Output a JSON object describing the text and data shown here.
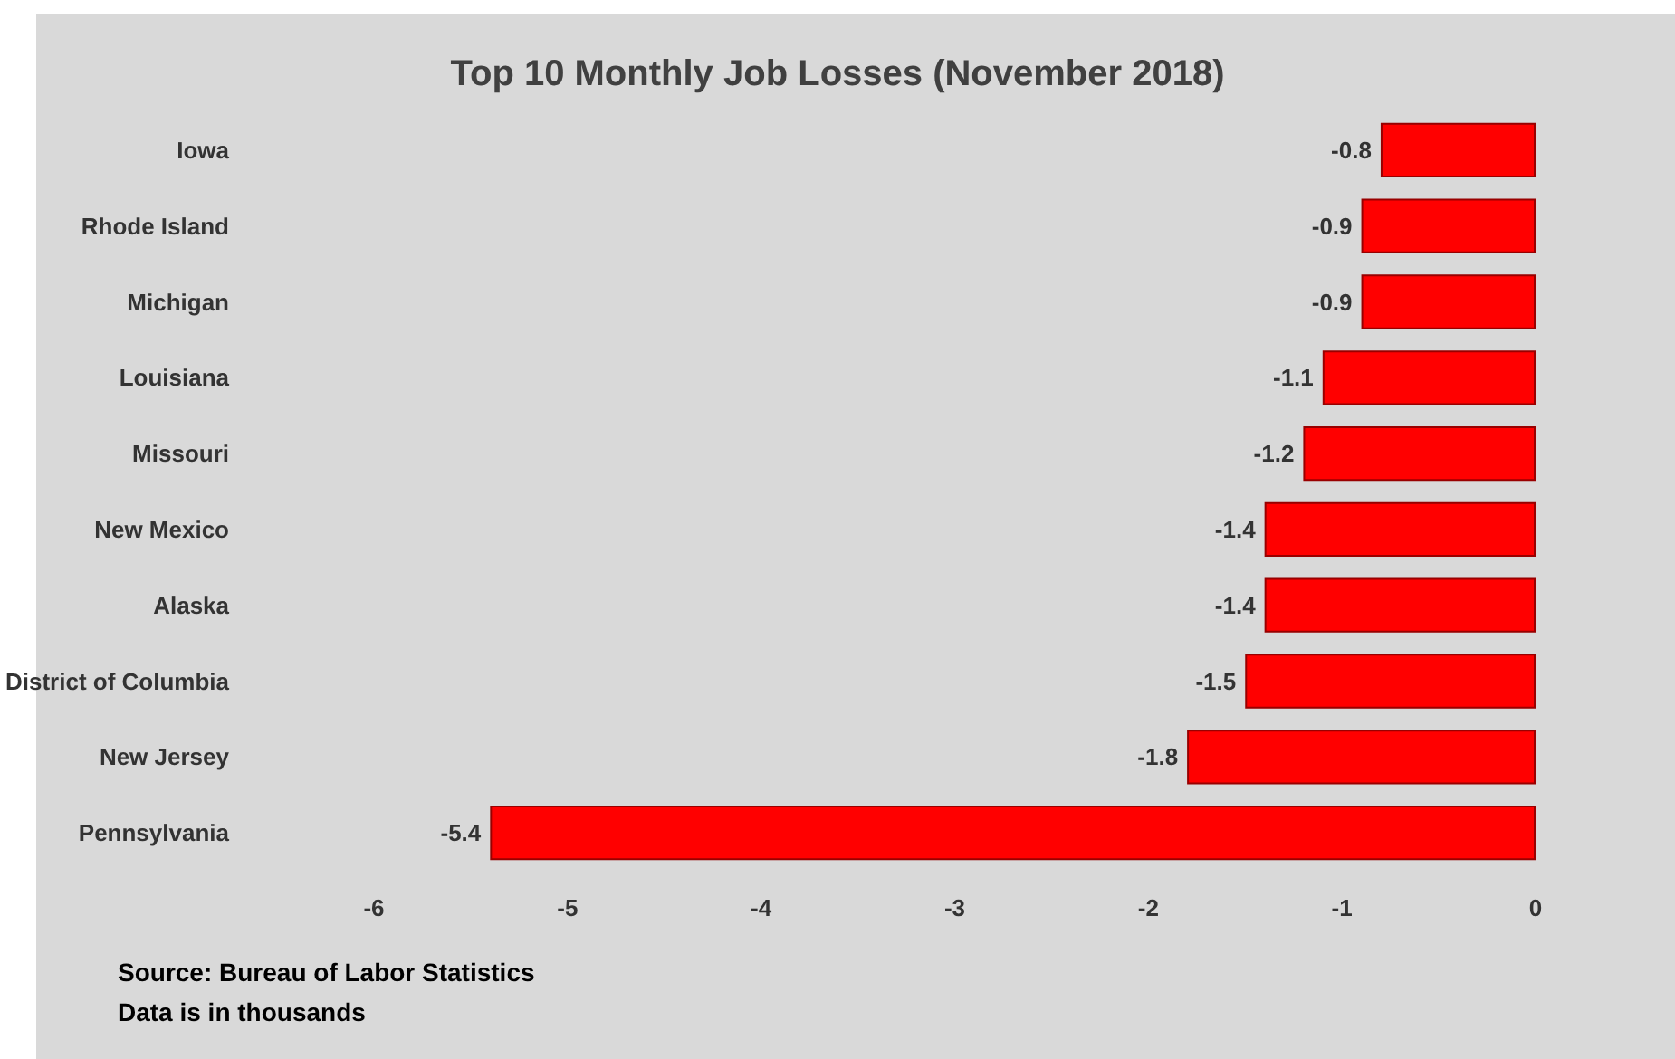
{
  "chart_data": {
    "type": "bar",
    "orientation": "horizontal",
    "title": "Top 10 Monthly Job Losses (November 2018)",
    "categories": [
      "Iowa",
      "Rhode Island",
      "Michigan",
      "Louisiana",
      "Missouri",
      "New Mexico",
      "Alaska",
      "District of Columbia",
      "New Jersey",
      "Pennsylvania"
    ],
    "values": [
      -0.8,
      -0.9,
      -0.9,
      -1.1,
      -1.2,
      -1.4,
      -1.4,
      -1.5,
      -1.8,
      -5.4
    ],
    "color": "#ff0000",
    "xlim": [
      -6,
      0
    ],
    "xticks": [
      -6,
      -5,
      -4,
      -3,
      -2,
      -1,
      0
    ],
    "data_labels": true,
    "grid": false,
    "annotations": [
      "Source: Bureau of Labor Statistics",
      "Data is in thousands"
    ]
  }
}
